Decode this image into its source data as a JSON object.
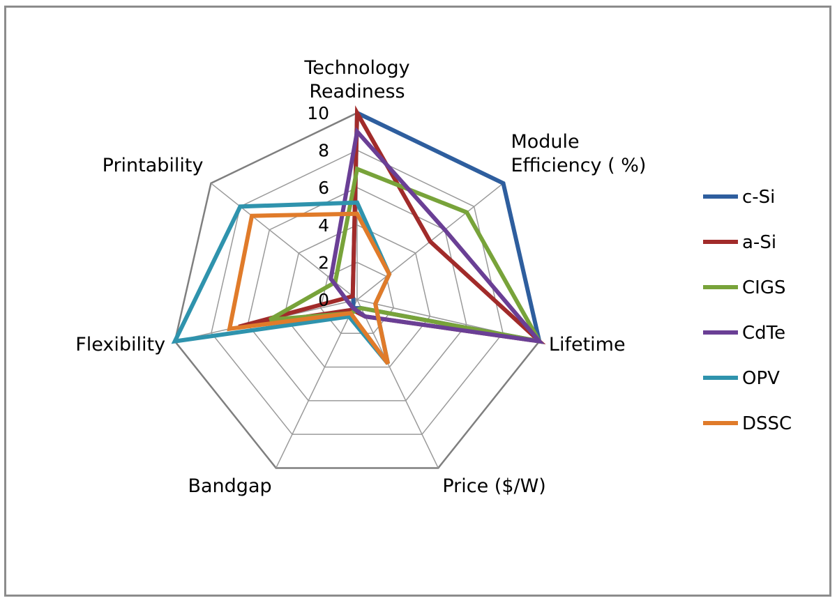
{
  "chart_data": {
    "type": "radar",
    "title": "",
    "axes": [
      "Technology\nReadiness",
      "Module\nEfficiency ( %)",
      "Lifetime",
      "Price ($/W)",
      "Bandgap",
      "Flexibility",
      "Printability"
    ],
    "r_range": [
      0,
      10
    ],
    "r_ticks": [
      "0",
      "2",
      "4",
      "6",
      "8",
      "10"
    ],
    "grid": true,
    "legend_position": "right",
    "series": [
      {
        "name": "c-Si",
        "color": "#2e5e9e",
        "values": [
          10,
          10,
          10,
          0.5,
          0.5,
          0.2,
          0.3
        ]
      },
      {
        "name": "a-Si",
        "color": "#a12b2a",
        "values": [
          10,
          5,
          10,
          1,
          0.6,
          6.5,
          0.3
        ]
      },
      {
        "name": "CIGS",
        "color": "#78a33a",
        "values": [
          7,
          7.5,
          10,
          0.5,
          0.8,
          4.8,
          1.5
        ]
      },
      {
        "name": "CdTe",
        "color": "#6a3f95",
        "values": [
          9,
          6,
          10,
          1,
          0.5,
          0.5,
          1.8
        ]
      },
      {
        "name": "OPV",
        "color": "#2f93ad",
        "values": [
          5.2,
          2.2,
          1,
          3.8,
          1,
          10,
          8
        ]
      },
      {
        "name": "DSSC",
        "color": "#e07b2a",
        "values": [
          4.6,
          2.2,
          1,
          3.8,
          0.8,
          7,
          7.2
        ]
      }
    ]
  }
}
